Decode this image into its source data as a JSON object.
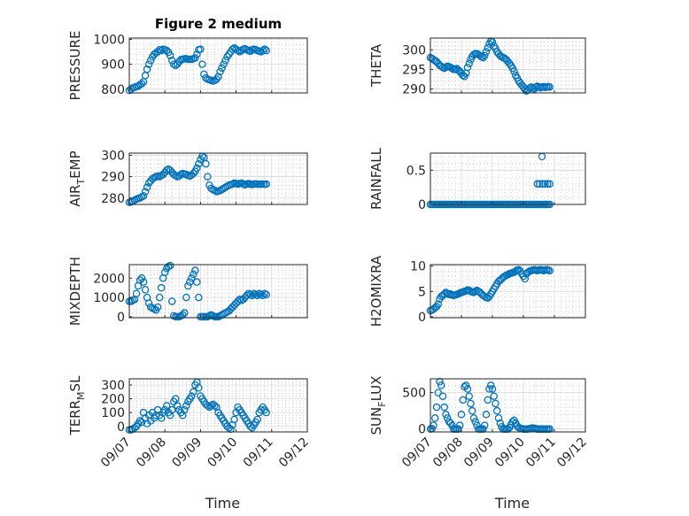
{
  "figure": {
    "title": "Figure 2 medium",
    "marker_color": "#0072BD"
  },
  "chart_data": [
    {
      "id": "pressure",
      "type": "scatter",
      "ylabel": "PRESSURE",
      "title": "Figure 2 medium",
      "xlabel": "",
      "xlim": [
        0,
        5
      ],
      "ylim": [
        785,
        1005
      ],
      "yticks": [
        800,
        900,
        1000
      ],
      "x": [
        0.0,
        0.05,
        0.1,
        0.15,
        0.2,
        0.25,
        0.3,
        0.35,
        0.4,
        0.45,
        0.5,
        0.55,
        0.6,
        0.65,
        0.7,
        0.75,
        0.8,
        0.85,
        0.9,
        0.95,
        1.0,
        1.05,
        1.1,
        1.15,
        1.2,
        1.25,
        1.3,
        1.35,
        1.4,
        1.45,
        1.5,
        1.55,
        1.6,
        1.65,
        1.7,
        1.75,
        1.8,
        1.85,
        1.9,
        1.95,
        2.0,
        2.05,
        2.1,
        2.15,
        2.2,
        2.25,
        2.3,
        2.35,
        2.4,
        2.45,
        2.5,
        2.55,
        2.6,
        2.65,
        2.7,
        2.75,
        2.8,
        2.85,
        2.9,
        2.95,
        3.0,
        3.05,
        3.1,
        3.15,
        3.2,
        3.25,
        3.3,
        3.35,
        3.4,
        3.45,
        3.5,
        3.55,
        3.6,
        3.65,
        3.7,
        3.75,
        3.8,
        3.85
      ],
      "y": [
        795,
        800,
        805,
        808,
        810,
        812,
        818,
        822,
        830,
        855,
        880,
        900,
        915,
        930,
        940,
        945,
        950,
        958,
        955,
        960,
        958,
        955,
        948,
        935,
        915,
        900,
        895,
        900,
        910,
        918,
        920,
        922,
        922,
        920,
        920,
        920,
        922,
        925,
        940,
        958,
        960,
        900,
        860,
        845,
        840,
        838,
        835,
        833,
        835,
        840,
        850,
        870,
        885,
        900,
        915,
        930,
        940,
        950,
        960,
        965,
        960,
        955,
        950,
        955,
        960,
        962,
        958,
        955,
        952,
        958,
        960,
        958,
        955,
        952,
        950,
        955,
        960,
        955
      ]
    },
    {
      "id": "theta",
      "type": "scatter",
      "ylabel": "THETA",
      "xlabel": "",
      "xlim": [
        0,
        5
      ],
      "ylim": [
        289,
        303
      ],
      "yticks": [
        290,
        295,
        300
      ],
      "x": [
        0.0,
        0.05,
        0.1,
        0.15,
        0.2,
        0.25,
        0.3,
        0.35,
        0.4,
        0.45,
        0.5,
        0.55,
        0.6,
        0.65,
        0.7,
        0.75,
        0.8,
        0.85,
        0.9,
        0.95,
        1.0,
        1.05,
        1.1,
        1.15,
        1.2,
        1.25,
        1.3,
        1.35,
        1.4,
        1.45,
        1.5,
        1.55,
        1.6,
        1.65,
        1.7,
        1.75,
        1.8,
        1.85,
        1.9,
        1.95,
        2.0,
        2.05,
        2.1,
        2.15,
        2.2,
        2.25,
        2.3,
        2.35,
        2.4,
        2.45,
        2.5,
        2.55,
        2.6,
        2.65,
        2.7,
        2.75,
        2.8,
        2.85,
        2.9,
        2.95,
        3.0,
        3.05,
        3.1,
        3.15,
        3.2,
        3.25,
        3.3,
        3.35,
        3.4,
        3.45,
        3.5,
        3.55,
        3.6,
        3.65,
        3.7,
        3.75,
        3.8,
        3.85
      ],
      "y": [
        298,
        297.8,
        297.5,
        297.2,
        297,
        296.5,
        296,
        295.8,
        295.5,
        295.3,
        295.6,
        295.8,
        295.7,
        295.5,
        295.3,
        295,
        295,
        295.2,
        294.8,
        294.5,
        294,
        293.5,
        293.2,
        294,
        295.5,
        296.5,
        297.5,
        298.3,
        298.8,
        299,
        299,
        298.8,
        298.5,
        298.2,
        298,
        298.5,
        299.5,
        300.5,
        301.5,
        302.2,
        302,
        301,
        300.3,
        299.5,
        299,
        298.5,
        298.2,
        298,
        297.8,
        297.5,
        297,
        296.5,
        296,
        295.3,
        294.5,
        293.5,
        292.8,
        292,
        291.5,
        291,
        290.5,
        290,
        289.5,
        289.8,
        290.2,
        290.5,
        290.2,
        290,
        290.5,
        290.7,
        290.5,
        290.3,
        290.5,
        290.6,
        290.4,
        290.5,
        290.6,
        290.5
      ]
    },
    {
      "id": "air_temp",
      "type": "scatter",
      "ylabel": "AIR_TEMP",
      "ylabel_parts": [
        "AIR",
        "T",
        "EMP"
      ],
      "xlabel": "",
      "xlim": [
        0,
        5
      ],
      "ylim": [
        277,
        301
      ],
      "yticks": [
        280,
        290,
        300
      ],
      "x": [
        0.0,
        0.05,
        0.1,
        0.15,
        0.2,
        0.25,
        0.3,
        0.35,
        0.4,
        0.45,
        0.5,
        0.55,
        0.6,
        0.65,
        0.7,
        0.75,
        0.8,
        0.85,
        0.9,
        0.95,
        1.0,
        1.05,
        1.1,
        1.15,
        1.2,
        1.25,
        1.3,
        1.35,
        1.4,
        1.45,
        1.5,
        1.55,
        1.6,
        1.65,
        1.7,
        1.75,
        1.8,
        1.85,
        1.9,
        1.95,
        2.0,
        2.05,
        2.1,
        2.15,
        2.2,
        2.25,
        2.3,
        2.35,
        2.4,
        2.45,
        2.5,
        2.55,
        2.6,
        2.65,
        2.7,
        2.75,
        2.8,
        2.85,
        2.9,
        2.95,
        3.0,
        3.05,
        3.1,
        3.15,
        3.2,
        3.25,
        3.3,
        3.35,
        3.4,
        3.45,
        3.5,
        3.55,
        3.6,
        3.65,
        3.7,
        3.75,
        3.8,
        3.85
      ],
      "y": [
        278,
        278.2,
        278.5,
        279,
        279.5,
        279.8,
        280,
        280.5,
        281,
        283,
        285,
        287,
        288,
        289,
        289.5,
        290,
        290.3,
        290,
        290.5,
        291,
        292,
        293,
        293.5,
        293,
        292,
        291,
        290.5,
        290,
        290.3,
        291,
        291.5,
        291.2,
        291,
        290.5,
        290.3,
        290.8,
        291.5,
        292.5,
        294,
        296,
        298,
        299.5,
        299,
        296,
        290,
        286,
        284.5,
        284,
        283.5,
        283,
        283.2,
        283.5,
        284,
        284.5,
        285,
        285.5,
        286,
        286.2,
        286.5,
        287,
        286.8,
        286.5,
        286.8,
        287,
        286.5,
        286.2,
        286.5,
        286.7,
        286.5,
        286.3,
        286.5,
        286.6,
        286.5,
        286.4,
        286.5,
        286.5,
        286.4,
        286.5
      ]
    },
    {
      "id": "rainfall",
      "type": "scatter",
      "ylabel": "RAINFALL",
      "xlabel": "",
      "xlim": [
        0,
        5
      ],
      "ylim": [
        0,
        0.75
      ],
      "yticks": [
        0,
        0.5
      ],
      "x": [
        0.0,
        0.05,
        0.1,
        0.15,
        0.2,
        0.25,
        0.3,
        0.35,
        0.4,
        0.45,
        0.5,
        0.55,
        0.6,
        0.65,
        0.7,
        0.75,
        0.8,
        0.85,
        0.9,
        0.95,
        1.0,
        1.05,
        1.1,
        1.15,
        1.2,
        1.25,
        1.3,
        1.35,
        1.4,
        1.45,
        1.5,
        1.55,
        1.6,
        1.65,
        1.7,
        1.75,
        1.8,
        1.85,
        1.9,
        1.95,
        2.0,
        2.05,
        2.1,
        2.15,
        2.2,
        2.25,
        2.3,
        2.35,
        2.4,
        2.45,
        2.5,
        2.55,
        2.6,
        2.65,
        2.7,
        2.75,
        2.8,
        2.85,
        2.9,
        2.95,
        3.0,
        3.05,
        3.1,
        3.15,
        3.2,
        3.25,
        3.3,
        3.35,
        3.4,
        3.45,
        3.5,
        3.55,
        3.6,
        3.65,
        3.7,
        3.75,
        3.8,
        3.85,
        3.6,
        3.45,
        3.52,
        3.62,
        3.7,
        3.78,
        3.85,
        3.7
      ],
      "y": [
        0,
        0,
        0,
        0,
        0,
        0,
        0,
        0,
        0,
        0,
        0,
        0,
        0,
        0,
        0,
        0,
        0,
        0,
        0,
        0,
        0,
        0,
        0,
        0,
        0,
        0,
        0,
        0,
        0,
        0,
        0,
        0,
        0,
        0,
        0,
        0,
        0,
        0,
        0,
        0,
        0,
        0,
        0,
        0,
        0,
        0,
        0,
        0,
        0,
        0,
        0,
        0,
        0,
        0,
        0,
        0,
        0,
        0,
        0,
        0,
        0,
        0,
        0,
        0,
        0,
        0,
        0,
        0,
        0,
        0,
        0,
        0,
        0,
        0,
        0,
        0,
        0,
        0,
        0.7,
        0.3,
        0.3,
        0.3,
        0.3,
        0.3,
        0.3,
        0
      ]
    },
    {
      "id": "mixdepth",
      "type": "scatter",
      "ylabel": "MIXDEPTH",
      "xlabel": "",
      "xlim": [
        0,
        5
      ],
      "ylim": [
        -50,
        2700
      ],
      "yticks": [
        0,
        1000,
        2000
      ],
      "x": [
        0.0,
        0.05,
        0.1,
        0.15,
        0.2,
        0.25,
        0.3,
        0.35,
        0.4,
        0.45,
        0.5,
        0.55,
        0.6,
        0.65,
        0.7,
        0.75,
        0.8,
        0.85,
        0.9,
        0.95,
        1.0,
        1.05,
        1.1,
        1.15,
        1.2,
        1.25,
        1.3,
        1.35,
        1.4,
        1.45,
        1.5,
        1.55,
        1.6,
        1.65,
        1.7,
        1.75,
        1.8,
        1.85,
        1.9,
        1.95,
        2.0,
        2.05,
        2.1,
        2.15,
        2.2,
        2.25,
        2.3,
        2.35,
        2.4,
        2.45,
        2.5,
        2.55,
        2.6,
        2.65,
        2.7,
        2.75,
        2.8,
        2.85,
        2.9,
        2.95,
        3.0,
        3.05,
        3.1,
        3.15,
        3.2,
        3.25,
        3.3,
        3.35,
        3.4,
        3.45,
        3.5,
        3.55,
        3.6,
        3.65,
        3.7,
        3.75,
        3.8,
        3.85
      ],
      "y": [
        800,
        800,
        850,
        900,
        1200,
        1600,
        1900,
        2000,
        1800,
        1400,
        1000,
        700,
        500,
        450,
        400,
        350,
        500,
        1000,
        1500,
        2000,
        2300,
        2500,
        2600,
        2650,
        800,
        50,
        0,
        0,
        0,
        50,
        100,
        200,
        1000,
        1600,
        1800,
        2000,
        2200,
        2400,
        1800,
        1000,
        0,
        0,
        0,
        0,
        0,
        50,
        100,
        50,
        0,
        0,
        0,
        50,
        100,
        150,
        200,
        250,
        300,
        400,
        500,
        600,
        700,
        800,
        900,
        850,
        900,
        1000,
        1100,
        1200,
        1150,
        1100,
        1200,
        1150,
        1100,
        1200,
        1150,
        1100,
        1200,
        1150
      ]
    },
    {
      "id": "h2omixra",
      "type": "scatter",
      "ylabel": "H2OMIXRA",
      "xlabel": "",
      "xlim": [
        0,
        5
      ],
      "ylim": [
        -0.2,
        10.3
      ],
      "yticks": [
        0,
        5,
        10
      ],
      "x": [
        0.0,
        0.05,
        0.1,
        0.15,
        0.2,
        0.25,
        0.3,
        0.35,
        0.4,
        0.45,
        0.5,
        0.55,
        0.6,
        0.65,
        0.7,
        0.75,
        0.8,
        0.85,
        0.9,
        0.95,
        1.0,
        1.05,
        1.1,
        1.15,
        1.2,
        1.25,
        1.3,
        1.35,
        1.4,
        1.45,
        1.5,
        1.55,
        1.6,
        1.65,
        1.7,
        1.75,
        1.8,
        1.85,
        1.9,
        1.95,
        2.0,
        2.05,
        2.1,
        2.15,
        2.2,
        2.25,
        2.3,
        2.35,
        2.4,
        2.45,
        2.5,
        2.55,
        2.6,
        2.65,
        2.7,
        2.75,
        2.8,
        2.85,
        2.9,
        2.95,
        3.0,
        3.05,
        3.1,
        3.15,
        3.2,
        3.25,
        3.3,
        3.35,
        3.4,
        3.45,
        3.5,
        3.55,
        3.6,
        3.65,
        3.7,
        3.75,
        3.8,
        3.85
      ],
      "y": [
        1.2,
        1.3,
        1.5,
        1.8,
        2,
        2.5,
        3.5,
        4,
        4.2,
        4.5,
        4.8,
        4.6,
        4.4,
        4.5,
        4.3,
        4.2,
        4.3,
        4.4,
        4.5,
        4.7,
        4.8,
        4.9,
        5,
        5.1,
        5.3,
        5.2,
        5,
        4.9,
        4.8,
        5,
        5.2,
        5,
        4.8,
        4.5,
        4.2,
        4,
        3.8,
        3.7,
        4,
        4.5,
        5,
        5.5,
        6,
        6.5,
        7,
        7.2,
        7.5,
        7.8,
        8,
        8.2,
        8.3,
        8.5,
        8.6,
        8.7,
        8.8,
        9,
        9.2,
        9.3,
        9,
        8.5,
        8,
        7.5,
        8.5,
        8.8,
        9,
        9.1,
        9.2,
        9.3,
        9.2,
        9.1,
        9.2,
        9.3,
        9.2,
        9.1,
        9.2,
        9.3,
        9.2,
        9.1
      ]
    },
    {
      "id": "terr_msl",
      "type": "scatter",
      "ylabel": "TERR_MSL",
      "ylabel_parts": [
        "TERR",
        "M",
        "SL"
      ],
      "xlabel": "Time",
      "xlim": [
        0,
        5
      ],
      "ylim": [
        -40,
        345
      ],
      "yticks": [
        0,
        100,
        200,
        300
      ],
      "xticklabels": [
        "09/07",
        "09/08",
        "09/09",
        "09/10",
        "09/11",
        "09/12"
      ],
      "x": [
        0.0,
        0.05,
        0.1,
        0.15,
        0.2,
        0.25,
        0.3,
        0.35,
        0.4,
        0.45,
        0.5,
        0.55,
        0.6,
        0.65,
        0.7,
        0.75,
        0.8,
        0.85,
        0.9,
        0.95,
        1.0,
        1.05,
        1.1,
        1.15,
        1.2,
        1.25,
        1.3,
        1.35,
        1.4,
        1.45,
        1.5,
        1.55,
        1.6,
        1.65,
        1.7,
        1.75,
        1.8,
        1.85,
        1.9,
        1.95,
        2.0,
        2.05,
        2.1,
        2.15,
        2.2,
        2.25,
        2.3,
        2.35,
        2.4,
        2.45,
        2.5,
        2.55,
        2.6,
        2.65,
        2.7,
        2.75,
        2.8,
        2.85,
        2.9,
        2.95,
        3.0,
        3.05,
        3.1,
        3.15,
        3.2,
        3.25,
        3.3,
        3.35,
        3.4,
        3.45,
        3.5,
        3.55,
        3.6,
        3.65,
        3.7,
        3.75,
        3.8,
        3.85
      ],
      "y": [
        -25,
        -25,
        -20,
        -10,
        0,
        20,
        40,
        30,
        100,
        60,
        20,
        80,
        40,
        100,
        60,
        80,
        120,
        80,
        60,
        100,
        120,
        150,
        100,
        80,
        120,
        180,
        200,
        150,
        120,
        100,
        80,
        120,
        150,
        180,
        200,
        220,
        250,
        300,
        320,
        280,
        220,
        200,
        180,
        160,
        150,
        140,
        150,
        160,
        150,
        140,
        100,
        80,
        60,
        40,
        20,
        0,
        -10,
        -20,
        10,
        50,
        100,
        140,
        120,
        100,
        80,
        60,
        40,
        20,
        0,
        -10,
        10,
        30,
        50,
        100,
        120,
        140,
        120,
        100
      ]
    },
    {
      "id": "sun_flux",
      "type": "scatter",
      "ylabel": "SUN_FLUX",
      "ylabel_parts": [
        "SUN",
        "F",
        "LUX"
      ],
      "xlabel": "Time",
      "xlim": [
        0,
        5
      ],
      "ylim": [
        -40,
        690
      ],
      "yticks": [
        0,
        500
      ],
      "xticklabels": [
        "09/07",
        "09/08",
        "09/09",
        "09/10",
        "09/11",
        "09/12"
      ],
      "x": [
        0.0,
        0.05,
        0.1,
        0.15,
        0.2,
        0.25,
        0.3,
        0.35,
        0.4,
        0.45,
        0.5,
        0.55,
        0.6,
        0.65,
        0.7,
        0.75,
        0.8,
        0.85,
        0.9,
        0.95,
        1.0,
        1.05,
        1.1,
        1.15,
        1.2,
        1.25,
        1.3,
        1.35,
        1.4,
        1.45,
        1.5,
        1.55,
        1.6,
        1.65,
        1.7,
        1.75,
        1.8,
        1.85,
        1.9,
        1.95,
        2.0,
        2.05,
        2.1,
        2.15,
        2.2,
        2.25,
        2.3,
        2.35,
        2.4,
        2.45,
        2.5,
        2.55,
        2.6,
        2.65,
        2.7,
        2.75,
        2.8,
        2.85,
        2.9,
        2.95,
        3.0,
        3.05,
        3.1,
        3.15,
        3.2,
        3.25,
        3.3,
        3.35,
        3.4,
        3.45,
        3.5,
        3.55,
        3.6,
        3.65,
        3.7,
        3.75,
        3.8,
        3.85
      ],
      "y": [
        0,
        5,
        50,
        150,
        300,
        500,
        650,
        600,
        450,
        300,
        200,
        150,
        100,
        80,
        50,
        0,
        0,
        0,
        0,
        50,
        200,
        400,
        580,
        600,
        550,
        450,
        350,
        250,
        150,
        100,
        50,
        0,
        0,
        0,
        0,
        50,
        200,
        400,
        550,
        600,
        550,
        450,
        350,
        250,
        150,
        80,
        30,
        0,
        0,
        0,
        0,
        20,
        60,
        100,
        120,
        80,
        40,
        20,
        10,
        5,
        0,
        0,
        0,
        0,
        5,
        10,
        15,
        10,
        5,
        0,
        0,
        0,
        0,
        0,
        0,
        0,
        0,
        0
      ]
    }
  ]
}
